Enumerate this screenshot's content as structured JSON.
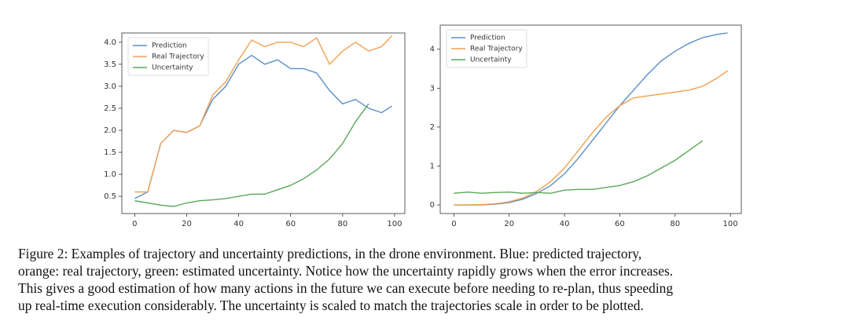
{
  "chart_data": [
    {
      "type": "line",
      "x": [
        0,
        5,
        10,
        15,
        20,
        25,
        30,
        35,
        40,
        45,
        50,
        55,
        60,
        65,
        70,
        75,
        80,
        85,
        90,
        95,
        99
      ],
      "series": [
        {
          "name": "Prediction",
          "color": "#5b8fc7",
          "values": [
            0.45,
            0.6,
            1.7,
            2.0,
            1.95,
            2.1,
            2.7,
            3.0,
            3.5,
            3.7,
            3.5,
            3.6,
            3.4,
            3.4,
            3.3,
            2.9,
            2.6,
            2.7,
            2.5,
            2.4,
            2.55
          ]
        },
        {
          "name": "Real Trajectory",
          "color": "#f0a050",
          "values": [
            0.6,
            0.6,
            1.7,
            2.0,
            1.95,
            2.1,
            2.8,
            3.1,
            3.6,
            4.05,
            3.9,
            4.0,
            4.0,
            3.9,
            4.1,
            3.5,
            3.8,
            4.0,
            3.8,
            3.9,
            4.15
          ]
        },
        {
          "name": "Uncertainty",
          "color": "#5aa85a",
          "values": [
            0.4,
            0.35,
            0.3,
            0.27,
            0.35,
            0.4,
            0.42,
            0.45,
            0.5,
            0.55,
            0.55,
            0.65,
            0.75,
            0.9,
            1.1,
            1.35,
            1.7,
            2.2,
            2.6,
            null,
            null
          ]
        }
      ],
      "xlim": [
        -4.95,
        103.95
      ],
      "xticks": [
        0,
        20,
        40,
        60,
        80,
        100
      ],
      "ylim": [
        0.11,
        4.21
      ],
      "yticks": [
        {
          "value": 0.5,
          "label": "0.5"
        },
        {
          "value": 1.0,
          "label": "1.0"
        },
        {
          "value": 1.5,
          "label": "1.5"
        },
        {
          "value": 2.0,
          "label": "2.0"
        },
        {
          "value": 2.5,
          "label": "2.5"
        },
        {
          "value": 3.0,
          "label": "3.0"
        },
        {
          "value": 3.5,
          "label": "3.5"
        },
        {
          "value": 4.0,
          "label": "4.0"
        }
      ],
      "legend": "upper left"
    },
    {
      "type": "line",
      "x": [
        0,
        5,
        10,
        15,
        20,
        25,
        30,
        35,
        40,
        45,
        50,
        55,
        60,
        65,
        70,
        75,
        80,
        85,
        90,
        95,
        99
      ],
      "series": [
        {
          "name": "Prediction",
          "color": "#5b8fc7",
          "values": [
            0,
            0,
            0,
            0.02,
            0.06,
            0.15,
            0.3,
            0.5,
            0.8,
            1.2,
            1.65,
            2.1,
            2.55,
            2.95,
            3.35,
            3.7,
            3.95,
            4.15,
            4.3,
            4.38,
            4.42
          ]
        },
        {
          "name": "Real Trajectory",
          "color": "#f0a050",
          "values": [
            0,
            0,
            0.01,
            0.03,
            0.08,
            0.18,
            0.35,
            0.6,
            0.95,
            1.4,
            1.85,
            2.25,
            2.55,
            2.75,
            2.8,
            2.85,
            2.9,
            2.95,
            3.05,
            3.25,
            3.45
          ]
        },
        {
          "name": "Uncertainty",
          "color": "#5aa85a",
          "values": [
            0.3,
            0.33,
            0.3,
            0.32,
            0.33,
            0.3,
            0.32,
            0.3,
            0.38,
            0.4,
            0.4,
            0.45,
            0.5,
            0.6,
            0.75,
            0.95,
            1.15,
            1.4,
            1.65,
            null,
            null
          ]
        }
      ],
      "xlim": [
        -4.95,
        103.95
      ],
      "xticks": [
        0,
        20,
        40,
        60,
        80,
        100
      ],
      "ylim": [
        -0.22,
        4.62
      ],
      "yticks": [
        0,
        1,
        2,
        3,
        4
      ],
      "legend": "upper left"
    }
  ],
  "caption": [
    "Figure 2: Examples of trajectory and uncertainty predictions, in the drone environment. Blue: predicted trajectory,",
    "orange: real trajectory, green: estimated uncertainty. Notice how the uncertainty rapidly grows when the error increases.",
    "This gives a good estimation of how many actions in the future we can execute before needing to re-plan, thus speeding",
    "up real-time execution considerably. The uncertainty is scaled to match the trajectories scale in order to be plotted."
  ]
}
